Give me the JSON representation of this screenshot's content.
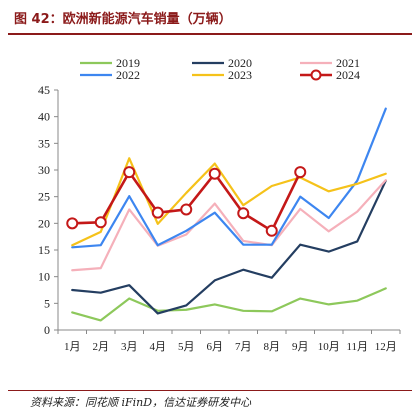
{
  "figure_title": "图 42：欧洲新能源汽车销量（万辆）",
  "source": "资料来源：同花顺 iFinD，信达证券研发中心",
  "chart_data": {
    "type": "line",
    "categories": [
      "1月",
      "2月",
      "3月",
      "4月",
      "5月",
      "6月",
      "7月",
      "8月",
      "9月",
      "10月",
      "11月",
      "12月"
    ],
    "ylim": [
      0,
      45
    ],
    "yticks": [
      0,
      5,
      10,
      15,
      20,
      25,
      30,
      35,
      40,
      45
    ],
    "grid": false,
    "legend_position": "top",
    "series": [
      {
        "name": "2019",
        "color": "#8dc85b",
        "marker": false,
        "values": [
          3.3,
          1.8,
          5.9,
          3.6,
          3.8,
          4.8,
          3.6,
          3.5,
          5.9,
          4.8,
          5.5,
          7.8
        ]
      },
      {
        "name": "2020",
        "color": "#243e61",
        "marker": false,
        "values": [
          7.5,
          7.0,
          8.4,
          3.1,
          4.6,
          9.3,
          11.3,
          9.8,
          16.0,
          14.7,
          16.6,
          28.0
        ]
      },
      {
        "name": "2021",
        "color": "#f5b0ba",
        "marker": false,
        "values": [
          11.2,
          11.6,
          22.6,
          15.8,
          17.9,
          23.7,
          16.7,
          15.9,
          22.7,
          18.5,
          22.2,
          28.1
        ]
      },
      {
        "name": "2022",
        "color": "#3d86f0",
        "marker": false,
        "values": [
          15.5,
          15.9,
          25.1,
          15.9,
          18.6,
          22.0,
          16.0,
          16.0,
          25.0,
          21.0,
          28.0,
          41.5
        ]
      },
      {
        "name": "2023",
        "color": "#f5c21a",
        "marker": false,
        "values": [
          15.9,
          18.4,
          32.2,
          19.9,
          25.7,
          31.2,
          23.4,
          27.0,
          28.6,
          26.0,
          27.4,
          29.3
        ]
      },
      {
        "name": "2024",
        "color": "#c41818",
        "marker": true,
        "values": [
          20.0,
          20.2,
          29.6,
          22.0,
          22.6,
          29.3,
          21.9,
          18.6,
          29.6,
          null,
          null,
          null
        ]
      }
    ]
  }
}
